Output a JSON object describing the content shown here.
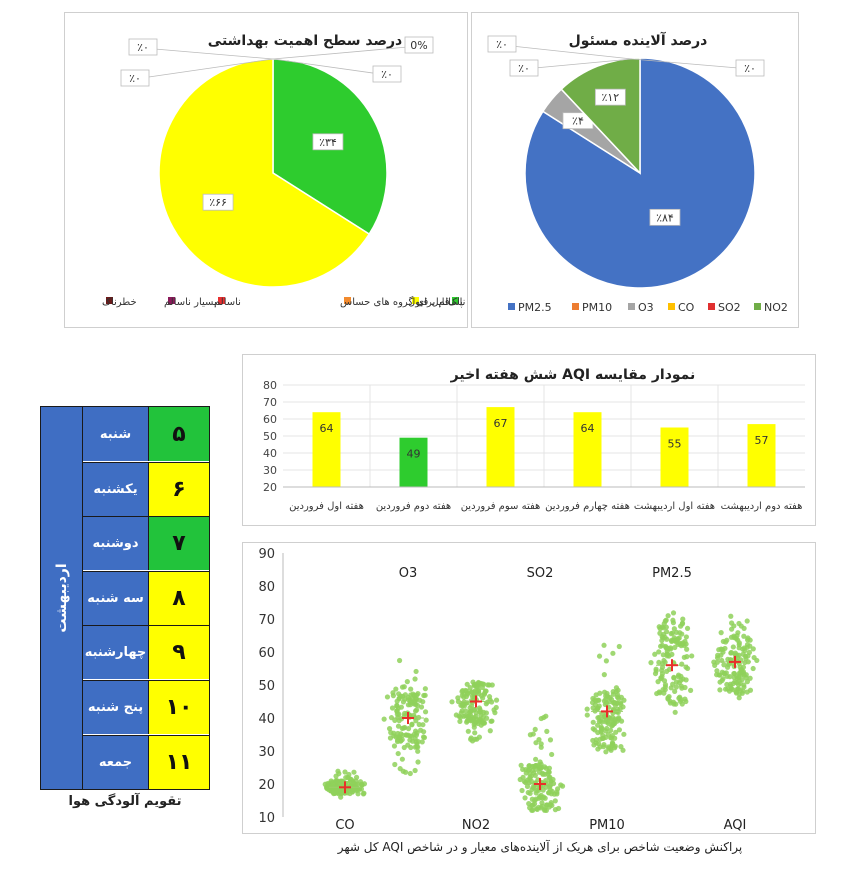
{
  "colors": {
    "good": "#2ecc2e",
    "moderate": "#ffff00",
    "usg": "#f28a2e",
    "unhealthy": "#e83030",
    "very_unhealthy": "#8b1a5a",
    "hazardous": "#6b1a1a",
    "pm25": "#4472c4",
    "pm10": "#ed7d31",
    "o3": "#a5a5a5",
    "co": "#ffc000",
    "so2": "#e03030",
    "no2": "#70ad47",
    "calendar_blue": "#3f6ec3",
    "scatter_green": "#8fd15a",
    "scatter_mean": "#e8302a"
  },
  "chart_data": [
    {
      "type": "pie",
      "title": "درصد سطح اهمیت بهداشتی",
      "slices": [
        {
          "name": "پاک",
          "value": 34,
          "label": "٪۳۴",
          "color_key": "good"
        },
        {
          "name": "قابل قبول",
          "value": 66,
          "label": "٪۶۶",
          "color_key": "moderate"
        },
        {
          "name": "ناسالم برای گروه های حساس",
          "value": 0,
          "label": "٪۰",
          "color_key": "usg"
        },
        {
          "name": "ناسالم",
          "value": 0,
          "label": "٪۰",
          "color_key": "unhealthy"
        },
        {
          "name": "بسیار ناسالم",
          "value": 0,
          "label": "٪۰",
          "color_key": "very_unhealthy"
        },
        {
          "name": "خطرناک",
          "value": 0,
          "label": "0%",
          "color_key": "hazardous"
        }
      ],
      "legend": "bottom"
    },
    {
      "type": "pie",
      "title": "درصد آلاینده مسئول",
      "slices": [
        {
          "name": "PM2.5",
          "value": 84,
          "label": "٪۸۴",
          "color_key": "pm25"
        },
        {
          "name": "PM10",
          "value": 0,
          "label": "٪۰",
          "color_key": "pm10"
        },
        {
          "name": "O3",
          "value": 4,
          "label": "٪۴",
          "color_key": "o3"
        },
        {
          "name": "CO",
          "value": 0,
          "label": "٪۰",
          "color_key": "co"
        },
        {
          "name": "SO2",
          "value": 0,
          "label": "٪۰",
          "color_key": "so2"
        },
        {
          "name": "NO2",
          "value": 12,
          "label": "٪۱۲",
          "color_key": "no2"
        }
      ],
      "legend": "bottom"
    },
    {
      "type": "bar",
      "title": "نمودار مقایسه AQI شش هفته اخیر",
      "categories": [
        "هفته اول فروردین",
        "هفته دوم فروردین",
        "هفته سوم فروردین",
        "هفته چهارم فروردین",
        "هفته اول اردیبهشت",
        "هفته دوم اردیبهشت"
      ],
      "values": [
        64,
        49,
        67,
        64,
        55,
        57
      ],
      "bar_colors": [
        "moderate",
        "good",
        "moderate",
        "moderate",
        "moderate",
        "moderate"
      ],
      "ylim": [
        20,
        80
      ],
      "yticks": [
        20,
        30,
        40,
        50,
        60,
        70,
        80
      ],
      "grid": true
    },
    {
      "type": "scatter",
      "caption": "پراکنش وضعیت شاخص برای هریک از آلاینده‌های معیار و در شاخص AQI کل شهر",
      "ylim": [
        10,
        90
      ],
      "yticks": [
        10,
        20,
        30,
        40,
        50,
        60,
        70,
        80,
        90
      ],
      "groups": [
        {
          "label": "CO",
          "label_pos": "bottom",
          "mean": 19,
          "min": 16,
          "max": 24,
          "dense_low": 17,
          "dense_high": 21
        },
        {
          "label": "O3",
          "label_pos": "top",
          "mean": 40,
          "min": 23,
          "max": 58,
          "dense_low": 31,
          "dense_high": 48
        },
        {
          "label": "NO2",
          "label_pos": "bottom",
          "mean": 45,
          "min": 33,
          "max": 52,
          "dense_low": 38,
          "dense_high": 51
        },
        {
          "label": "SO2",
          "label_pos": "top",
          "mean": 20,
          "min": 12,
          "max": 41,
          "dense_low": 12,
          "dense_high": 26
        },
        {
          "label": "PM10",
          "label_pos": "bottom",
          "mean": 42,
          "min": 28,
          "max": 63,
          "dense_low": 30,
          "dense_high": 48
        },
        {
          "label": "PM2.5",
          "label_pos": "top",
          "mean": 56,
          "min": 41,
          "max": 72,
          "dense_low": 44,
          "dense_high": 70
        },
        {
          "label": "AQI",
          "label_pos": "bottom",
          "mean": 57,
          "min": 45,
          "max": 72,
          "dense_low": 47,
          "dense_high": 66
        }
      ]
    }
  ],
  "calendar": {
    "month": "اردیبهشت",
    "title": "تقویم آلودگی هوا",
    "rows": [
      {
        "day": "شنبه",
        "num": "۵",
        "level": "good"
      },
      {
        "day": "یکشنبه",
        "num": "۶",
        "level": "moderate"
      },
      {
        "day": "دوشنبه",
        "num": "۷",
        "level": "good"
      },
      {
        "day": "سه شنبه",
        "num": "۸",
        "level": "moderate"
      },
      {
        "day": "چهارشنبه",
        "num": "۹",
        "level": "moderate"
      },
      {
        "day": "پنج شنبه",
        "num": "۱۰",
        "level": "moderate"
      },
      {
        "day": "جمعه",
        "num": "۱۱",
        "level": "moderate"
      }
    ]
  }
}
